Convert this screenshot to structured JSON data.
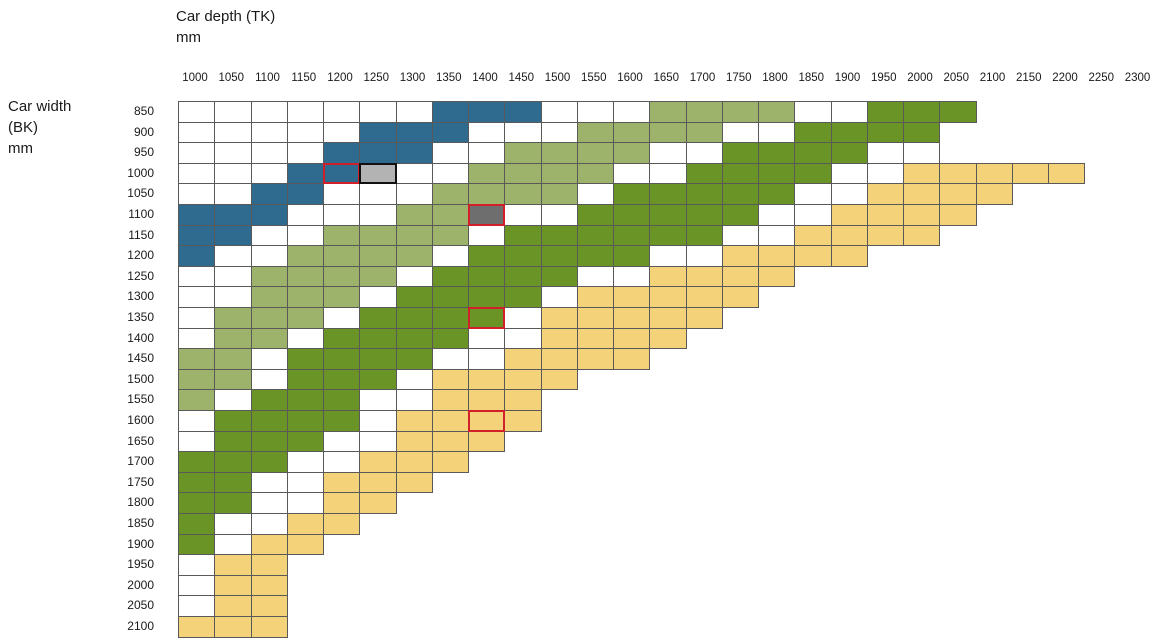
{
  "chart_data": {
    "type": "heatmap",
    "xlabel_line1": "Car depth (TK)",
    "xlabel_line2": "mm",
    "ylabel_line1": "Car width",
    "ylabel_line2": "(BK)",
    "ylabel_line3": "mm",
    "x_ticks": [
      "1000",
      "1050",
      "1100",
      "1150",
      "1200",
      "1250",
      "1300",
      "1350",
      "1400",
      "1450",
      "1500",
      "1550",
      "1600",
      "1650",
      "1700",
      "1750",
      "1800",
      "1850",
      "1900",
      "1950",
      "2000",
      "2050",
      "2100",
      "2150",
      "2200",
      "2250",
      "2300"
    ],
    "y_ticks": [
      "850",
      "900",
      "950",
      "1000",
      "1050",
      "1100",
      "1150",
      "1200",
      "1250",
      "1300",
      "1350",
      "1400",
      "1450",
      "1500",
      "1550",
      "1600",
      "1650",
      "1700",
      "1750",
      "1800",
      "1850",
      "1900",
      "1950",
      "2000",
      "2050",
      "2100"
    ],
    "color_key": {
      "W": "#ffffff",
      "B": "#2e6b8f",
      "L": "#9db26a",
      "G": "#6b9427",
      "Y": "#f4d27a",
      "S": "#b3b3b3",
      "D": "#6e6e6e"
    },
    "rows": [
      "WWWWWWWBBBWWWLLLLWWGGG",
      "WWWWWBBBWWWLLLLWWGGGG",
      "WWWWBBBWWLLLLWWGGGGWW",
      "WWWBBSWWLLLLWWGGGGWWYYYYY",
      "WWBBWWWLLLLWGGGGGWWYYYY",
      "BBBWWWLLDWWGGGGGWWYYYY",
      "BBWWLLLLWGGGGGGWWYYYY",
      "BWWLLLLWGGGGGWWYYYY",
      "WWLLLLWGGGGWWYYYY",
      "WWLLLWGGGGWYYYYY",
      "WLLLWGGGGWYYYYY",
      "WLLWGGGGWWYYYY",
      "LLWGGGGWWYYYY",
      "LLWGGGWYYYY",
      "LWGGGWWYYY",
      "WGGGGWYYYY",
      "WGGGWWYYY",
      "GGGWWYYY",
      "GGWWYYY",
      "GGWWYY",
      "GWWYY",
      "GWYY",
      "WYY",
      "WYY",
      "WYY",
      "YYY"
    ],
    "highlight_cells": [
      {
        "row": 3,
        "col": 4,
        "style": "red"
      },
      {
        "row": 3,
        "col": 5,
        "style": "black"
      },
      {
        "row": 5,
        "col": 8,
        "style": "red"
      },
      {
        "row": 5,
        "col": 22,
        "style": "red"
      },
      {
        "row": 10,
        "col": 8,
        "style": "red"
      },
      {
        "row": 15,
        "col": 8,
        "style": "red"
      }
    ]
  }
}
